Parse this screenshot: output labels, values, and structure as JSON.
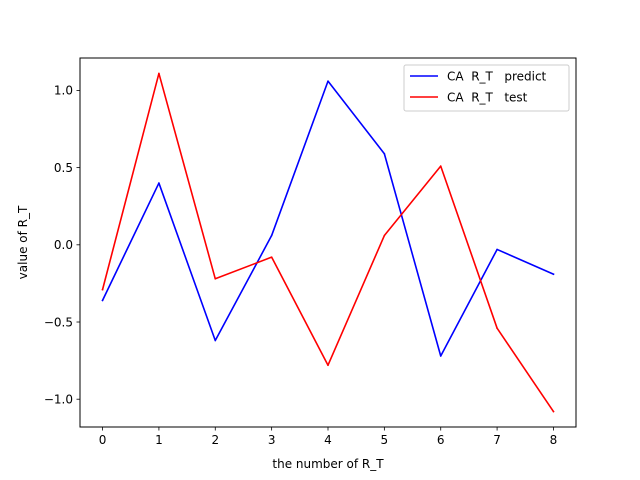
{
  "chart_data": {
    "type": "line",
    "title": "",
    "xlabel": "the number of R_T",
    "ylabel": "value of R_T",
    "x": [
      0,
      1,
      2,
      3,
      4,
      5,
      6,
      7,
      8
    ],
    "xlim": [
      -0.4,
      8.4
    ],
    "ylim": [
      -1.18,
      1.21
    ],
    "xticks": [
      0,
      1,
      2,
      3,
      4,
      5,
      6,
      7,
      8
    ],
    "yticks": [
      -1.0,
      -0.5,
      0.0,
      0.5,
      1.0
    ],
    "ytick_labels": [
      "−1.0",
      "−0.5",
      "0.0",
      "0.5",
      "1.0"
    ],
    "grid": false,
    "legend_location": "top-right",
    "series": [
      {
        "name": "CA  R_T   predict",
        "color": "#0000ff",
        "values": [
          -0.36,
          0.4,
          -0.62,
          0.06,
          1.06,
          0.59,
          -0.72,
          -0.03,
          -0.19
        ]
      },
      {
        "name": "CA  R_T   test",
        "color": "#ff0000",
        "values": [
          -0.29,
          1.11,
          -0.22,
          -0.08,
          -0.78,
          0.06,
          0.51,
          -0.54,
          -1.08
        ]
      }
    ]
  }
}
